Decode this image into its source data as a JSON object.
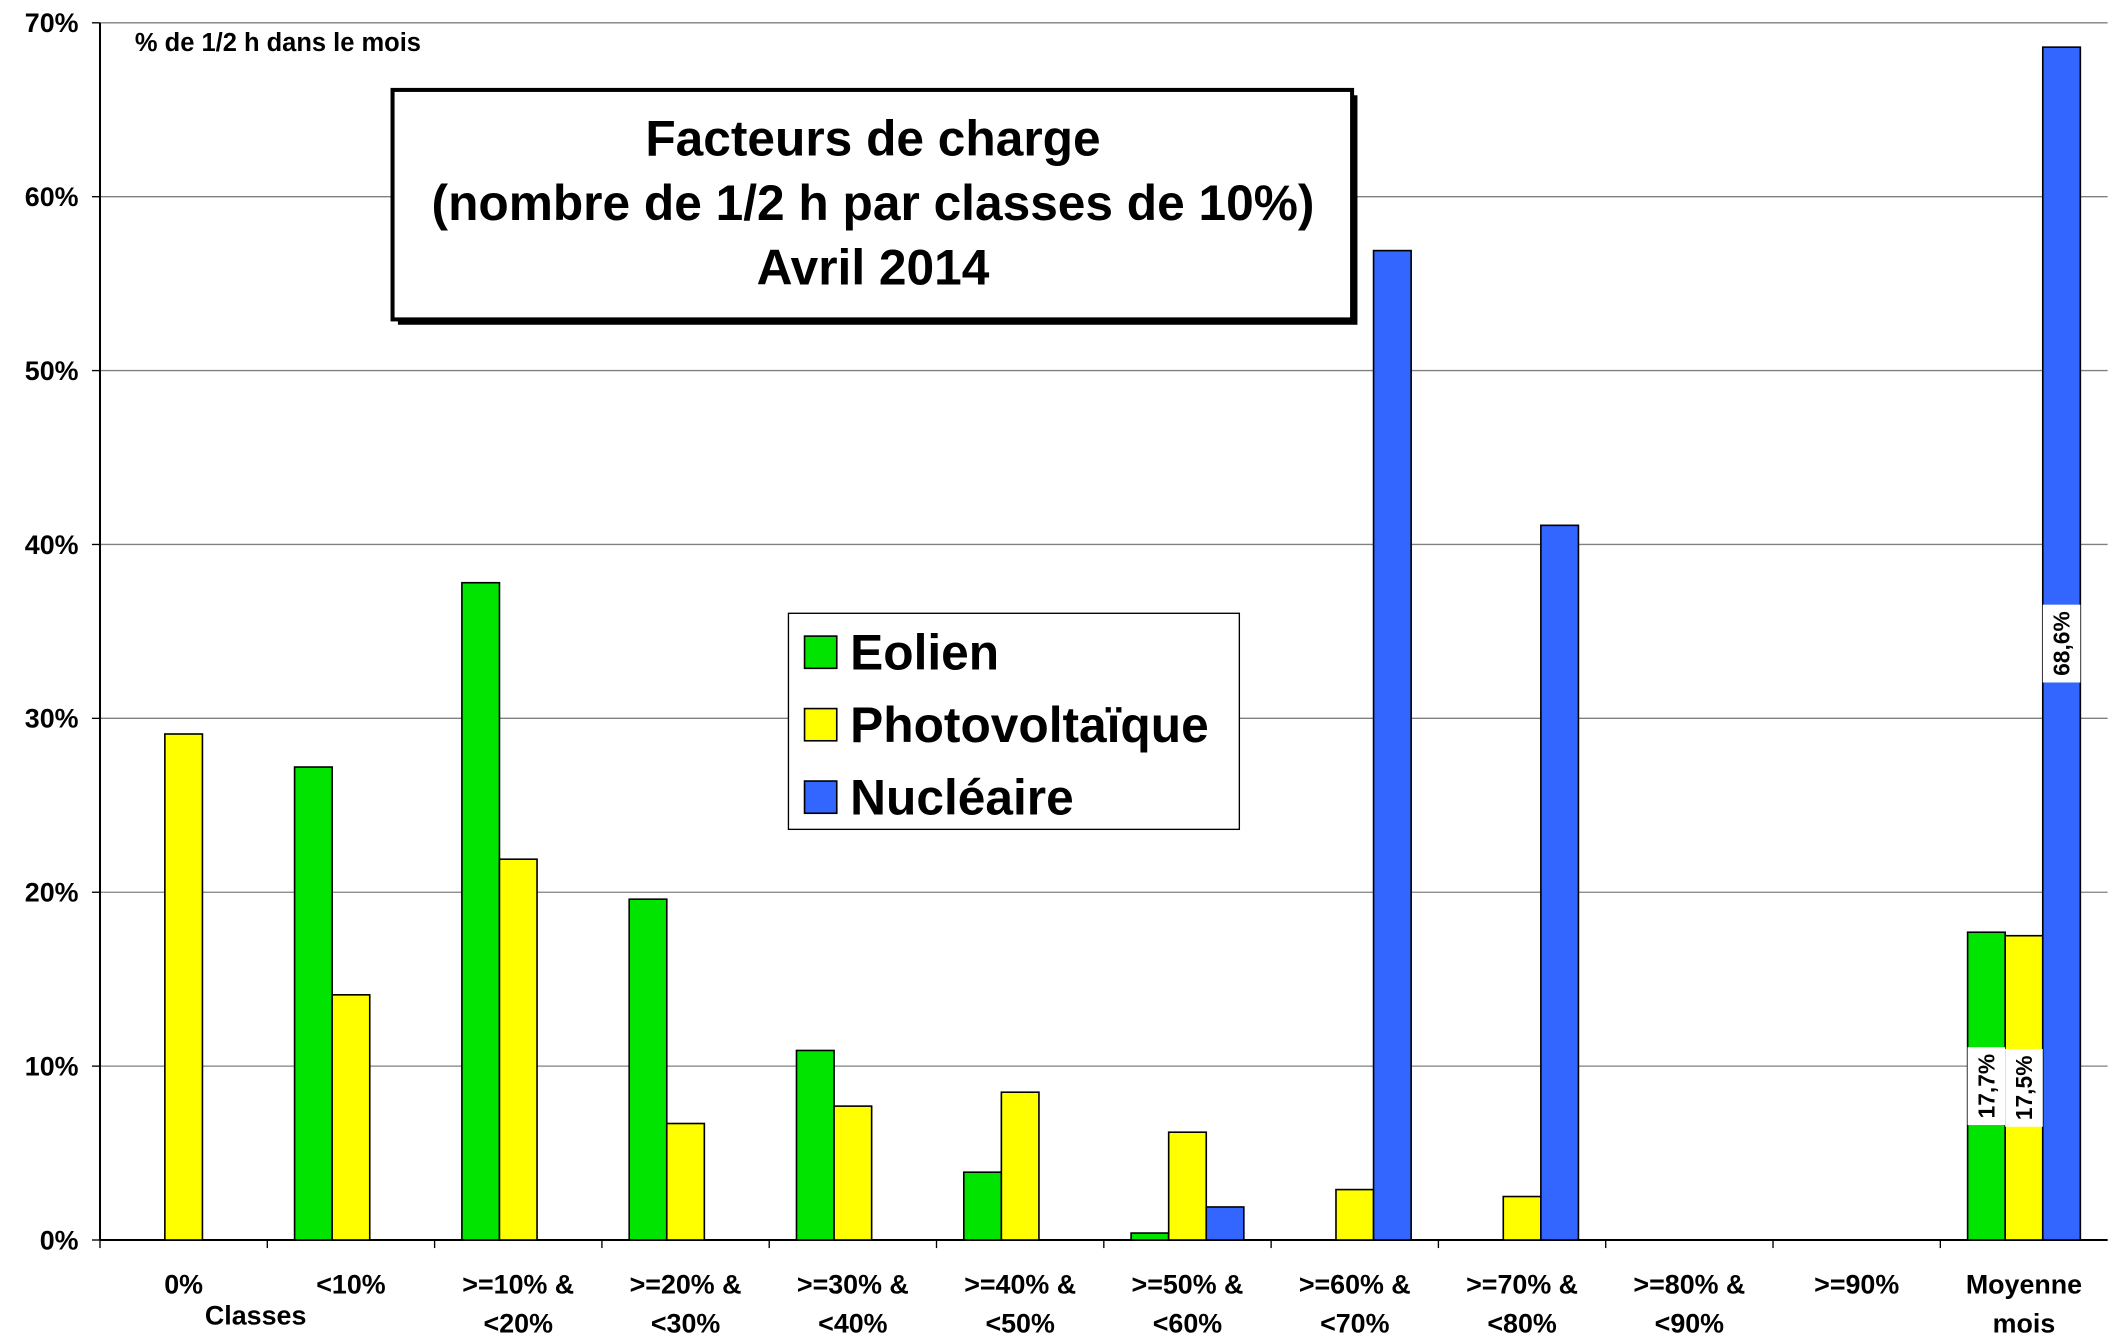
{
  "chart_data": {
    "type": "bar",
    "title": [
      "Facteurs de charge",
      "(nombre de 1/2 h par classes de 10%)",
      "Avril 2014"
    ],
    "y_label": "% de 1/2 h dans le mois",
    "x_label": "Classes",
    "categories": [
      "0%",
      "<10%",
      ">=10% & <20%",
      ">=20% & <30%",
      ">=30% & <40%",
      ">=40% & <50%",
      ">=50% & <60%",
      ">=60% & <70%",
      ">=70% & <80%",
      ">=80% & <90%",
      ">=90%",
      "Moyenne mois"
    ],
    "series": [
      {
        "name": "Eolien",
        "color": "#00e400",
        "values": [
          0,
          27.2,
          37.8,
          19.6,
          10.9,
          3.9,
          0.4,
          0,
          0,
          0,
          0,
          17.7
        ],
        "value_labels": [
          null,
          null,
          null,
          null,
          null,
          null,
          null,
          null,
          null,
          null,
          null,
          "17,7%"
        ]
      },
      {
        "name": "Photovoltaïque",
        "color": "#ffff00",
        "values": [
          29.1,
          14.1,
          21.9,
          6.7,
          7.7,
          8.5,
          6.2,
          2.9,
          2.5,
          0,
          0,
          17.5
        ],
        "value_labels": [
          null,
          null,
          null,
          null,
          null,
          null,
          null,
          null,
          null,
          null,
          null,
          "17,5%"
        ]
      },
      {
        "name": "Nucléaire",
        "color": "#3366ff",
        "values": [
          0,
          0,
          0,
          0,
          0,
          0,
          1.9,
          56.9,
          41.1,
          0,
          0,
          68.6
        ],
        "value_labels": [
          null,
          null,
          null,
          null,
          null,
          null,
          null,
          null,
          null,
          null,
          null,
          "68,6%"
        ]
      }
    ],
    "ylim": [
      0,
      70
    ],
    "yticks": [
      {
        "value": 0,
        "label": "0%"
      },
      {
        "value": 10,
        "label": "10%"
      },
      {
        "value": 20,
        "label": "20%"
      },
      {
        "value": 30,
        "label": "30%"
      },
      {
        "value": 40,
        "label": "40%"
      },
      {
        "value": 50,
        "label": "50%"
      },
      {
        "value": 60,
        "label": "60%"
      },
      {
        "value": 70,
        "label": "70%"
      }
    ],
    "grid": true,
    "legend": "center"
  }
}
